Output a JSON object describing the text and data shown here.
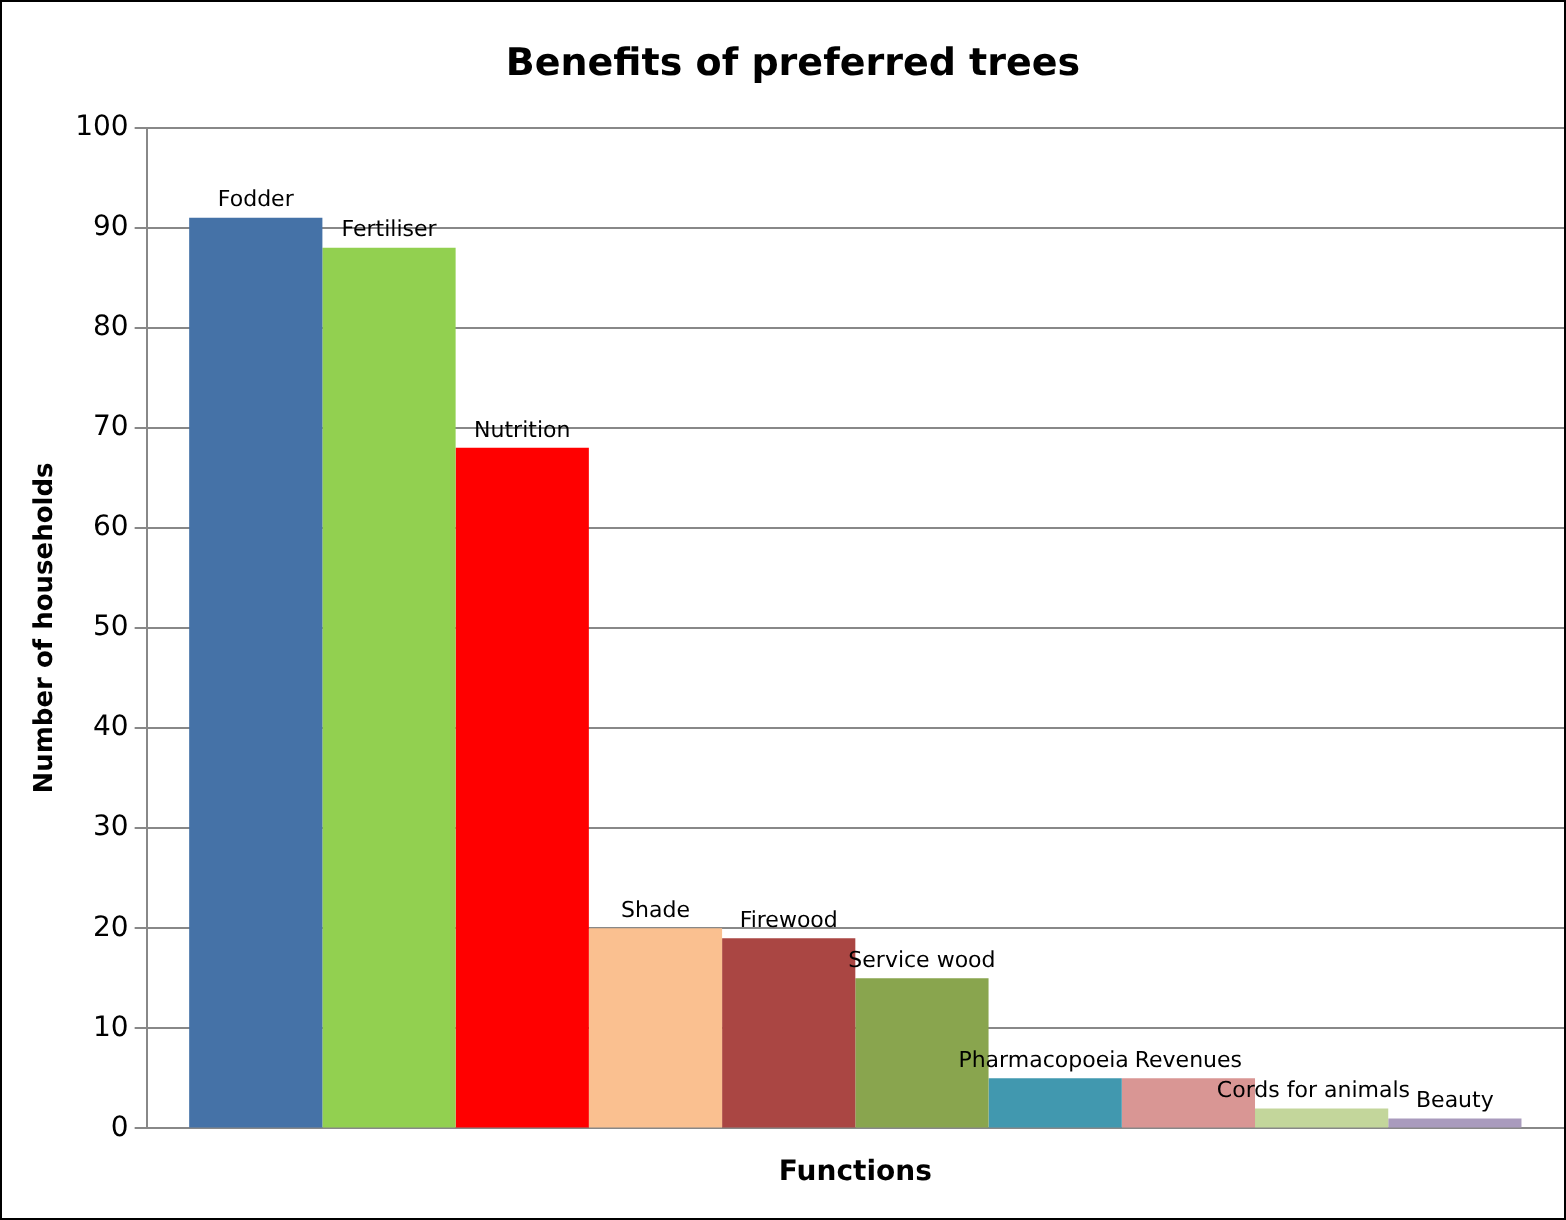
{
  "chart_data": {
    "type": "bar",
    "title": "Benefits of preferred trees",
    "xlabel": "Functions",
    "ylabel": "Number of households",
    "categories": [
      null
    ],
    "series": [
      {
        "name": "Fodder",
        "color": "#4572a7",
        "values": [
          91
        ]
      },
      {
        "name": "Fertiliser",
        "color": "#92d050",
        "values": [
          88
        ]
      },
      {
        "name": "Nutrition",
        "color": "#ff0000",
        "values": [
          68
        ]
      },
      {
        "name": "Shade",
        "color": "#fac090",
        "values": [
          20
        ]
      },
      {
        "name": "Firewood",
        "color": "#aa4643",
        "values": [
          19
        ]
      },
      {
        "name": "Service wood",
        "color": "#89a54e",
        "values": [
          15
        ]
      },
      {
        "name": "Pharmacopoeia",
        "color": "#4198af",
        "values": [
          5
        ]
      },
      {
        "name": "Revenues",
        "color": "#d99694",
        "values": [
          5
        ]
      },
      {
        "name": "Cords for animals",
        "color": "#c3d69b",
        "values": [
          2
        ]
      },
      {
        "name": "Beauty",
        "color": "#a99bbd",
        "values": [
          1
        ]
      }
    ],
    "ylim": [
      0,
      100
    ],
    "yticks": [
      0,
      10,
      20,
      30,
      40,
      50,
      60,
      70,
      80,
      90,
      100
    ],
    "grid": "y",
    "tick_labels": "y",
    "legend": false
  }
}
